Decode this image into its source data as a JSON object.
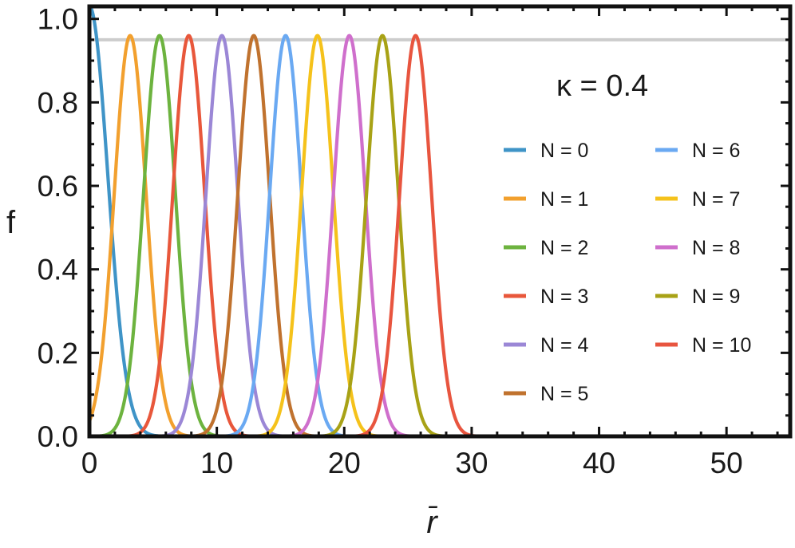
{
  "chart_data": {
    "type": "line",
    "title": "",
    "xlabel": "r̄",
    "ylabel": "f",
    "annotation": "κ = 0.4",
    "xlim": [
      0,
      55
    ],
    "ylim": [
      0,
      1.03
    ],
    "x_ticks": [
      0,
      10,
      20,
      30,
      40,
      50
    ],
    "x_tick_labels": [
      "0",
      "10",
      "20",
      "30",
      "40",
      "50"
    ],
    "y_ticks": [
      0.0,
      0.2,
      0.4,
      0.6,
      0.8,
      1.0
    ],
    "y_tick_labels": [
      "0.0",
      "0.2",
      "0.4",
      "0.6",
      "0.8",
      "1.0"
    ],
    "reference_line": {
      "y": 0.95,
      "color": "#cccccc"
    },
    "grid": false,
    "legend_position": "right, two columns",
    "series": [
      {
        "name": "N = 0",
        "color": "#3f94c7",
        "peak_x": 0,
        "peak_y": 1.03,
        "width": 1.45
      },
      {
        "name": "N = 1",
        "color": "#f2a02e",
        "peak_x": 3.2,
        "peak_y": 0.96,
        "width": 1.25
      },
      {
        "name": "N = 2",
        "color": "#6db33f",
        "peak_x": 5.5,
        "peak_y": 0.96,
        "width": 1.25
      },
      {
        "name": "N = 3",
        "color": "#e8573b",
        "peak_x": 7.8,
        "peak_y": 0.96,
        "width": 1.25
      },
      {
        "name": "N = 4",
        "color": "#9b87d6",
        "peak_x": 10.4,
        "peak_y": 0.96,
        "width": 1.25
      },
      {
        "name": "N = 5",
        "color": "#c0722e",
        "peak_x": 12.9,
        "peak_y": 0.96,
        "width": 1.25
      },
      {
        "name": "N = 6",
        "color": "#6aa9f2",
        "peak_x": 15.4,
        "peak_y": 0.96,
        "width": 1.25
      },
      {
        "name": "N = 7",
        "color": "#f5c21b",
        "peak_x": 17.9,
        "peak_y": 0.96,
        "width": 1.25
      },
      {
        "name": "N = 8",
        "color": "#cf6fcc",
        "peak_x": 20.4,
        "peak_y": 0.96,
        "width": 1.25
      },
      {
        "name": "N = 9",
        "color": "#a8a216",
        "peak_x": 23.0,
        "peak_y": 0.96,
        "width": 1.25
      },
      {
        "name": "N = 10",
        "color": "#e8553f",
        "peak_x": 25.6,
        "peak_y": 0.96,
        "width": 1.25
      }
    ]
  }
}
